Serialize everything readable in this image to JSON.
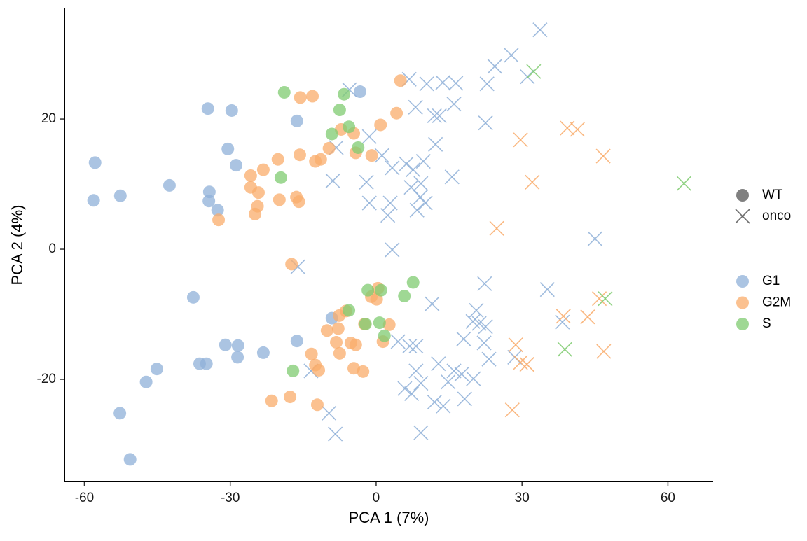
{
  "chart_data": {
    "type": "scatter",
    "x_label": "PCA 1 (7%)",
    "y_label": "PCA 2 (4%)",
    "xlim": [
      -64.1,
      69.3
    ],
    "ylim": [
      -35.7,
      37.0
    ],
    "xticks": [
      -60,
      -30,
      0,
      30,
      60
    ],
    "yticks": [
      -20,
      0,
      20
    ],
    "grid": false,
    "shape_legend": [
      {
        "name": "WT",
        "marker": "circle"
      },
      {
        "name": "onco",
        "marker": "cross"
      }
    ],
    "series": [
      {
        "name": "G1",
        "color": "#8fb0d8",
        "groups": [
          {
            "shape": "WT",
            "x": [
              -57.8,
              -58.1,
              -52.6,
              -42.5,
              -34.6,
              -29.7,
              -30.5,
              -28.8,
              -34.3,
              -34.4,
              -32.6,
              -16.3,
              -3.3,
              -37.6,
              -31.0,
              -28.4,
              -28.5,
              -36.3,
              -34.9,
              -23.2,
              -16.3,
              -45.1,
              -47.3,
              -52.7,
              -50.6,
              -9.1
            ],
            "values": [
              13.3,
              7.5,
              8.2,
              9.8,
              21.6,
              21.3,
              15.4,
              12.9,
              8.8,
              7.4,
              6.0,
              19.7,
              24.2,
              -7.4,
              -14.7,
              -14.8,
              -16.6,
              -17.6,
              -17.6,
              -15.9,
              -14.1,
              -18.4,
              -20.4,
              -25.2,
              -32.3,
              -10.6
            ]
          },
          {
            "shape": "onco",
            "x": [
              6.8,
              33.7,
              27.8,
              24.4,
              10.4,
              13.7,
              16.4,
              22.8,
              31.1,
              8.1,
              12.0,
              13.0,
              16.0,
              22.5,
              12.2,
              15.6,
              -1.4,
              -8.2,
              -5.5,
              1.2,
              3.3,
              6.2,
              7.6,
              9.7,
              7.2,
              9.2,
              9.1,
              10.1,
              8.4,
              2.9,
              2.4,
              -2.0,
              -1.4,
              -8.9,
              3.3,
              45.0,
              -16.1,
              11.5,
              22.3,
              35.2,
              38.3,
              20.6,
              19.9,
              21.2,
              22.5,
              22.2,
              23.2,
              18.0,
              4.5,
              6.9,
              8.2,
              8.2,
              12.8,
              16.0,
              14.8,
              17.6,
              20.0,
              9.2,
              5.9,
              7.3,
              12.0,
              13.8,
              18.2,
              28.5,
              -13.4,
              -9.7,
              -8.4,
              9.2
            ],
            "values": [
              26.1,
              33.7,
              29.8,
              28.1,
              25.4,
              25.6,
              25.5,
              25.4,
              26.5,
              21.8,
              20.5,
              20.5,
              22.3,
              19.4,
              16.1,
              11.1,
              17.3,
              15.6,
              24.5,
              14.4,
              12.5,
              13.1,
              12.2,
              13.5,
              9.5,
              10.1,
              8.0,
              7.1,
              6.0,
              7.1,
              5.2,
              10.3,
              7.1,
              10.5,
              -0.1,
              1.6,
              -2.7,
              -8.4,
              -5.3,
              -6.2,
              -11.2,
              -9.4,
              -11.1,
              -11.4,
              -11.9,
              -14.4,
              -16.9,
              -13.8,
              -14.2,
              -14.9,
              -14.9,
              -18.7,
              -17.6,
              -18.7,
              -20.4,
              -19.2,
              -19.9,
              -20.6,
              -21.4,
              -22.2,
              -23.5,
              -24.1,
              -23.0,
              -16.6,
              -18.7,
              -25.2,
              -28.4,
              -28.2
            ]
          }
        ]
      },
      {
        "name": "G2M",
        "color": "#f9ac6b",
        "groups": [
          {
            "shape": "WT",
            "x": [
              5.0,
              4.2,
              0.9,
              -4.6,
              -7.2,
              -9.7,
              -4.2,
              -0.9,
              -11.4,
              -12.5,
              -15.6,
              -13.1,
              -15.7,
              -20.2,
              -23.2,
              -25.8,
              -25.8,
              -24.2,
              -24.4,
              -24.9,
              -19.9,
              -16.4,
              -15.9,
              -32.4,
              -17.4,
              0.4,
              0.1,
              -1.0,
              -6.2,
              -7.6,
              -7.8,
              -10.1,
              -2.4,
              2.7,
              1.4,
              -5.2,
              -4.2,
              -8.2,
              -7.5,
              -13.3,
              -12.5,
              -11.8,
              -4.6,
              -2.7,
              -17.7,
              -21.5,
              -12.1
            ],
            "values": [
              25.9,
              20.9,
              19.1,
              17.8,
              18.4,
              15.5,
              14.8,
              14.4,
              13.8,
              13.5,
              23.3,
              23.5,
              14.5,
              13.8,
              12.2,
              11.3,
              9.5,
              8.7,
              6.6,
              5.4,
              7.6,
              8.0,
              7.3,
              4.5,
              -2.3,
              -6.0,
              -7.7,
              -7.3,
              -9.5,
              -10.2,
              -12.2,
              -12.5,
              -11.5,
              -11.6,
              -14.2,
              -14.4,
              -14.7,
              -14.3,
              -16.0,
              -16.1,
              -17.8,
              -18.6,
              -18.3,
              -18.8,
              -22.7,
              -23.3,
              -23.9
            ]
          },
          {
            "shape": "onco",
            "x": [
              29.7,
              39.3,
              41.4,
              46.7,
              32.1,
              24.8,
              38.5,
              43.5,
              45.9,
              28.7,
              29.7,
              31.0,
              46.8,
              28.0
            ],
            "values": [
              16.8,
              18.6,
              18.4,
              14.3,
              10.3,
              3.2,
              -10.3,
              -10.4,
              -7.6,
              -14.7,
              -17.4,
              -17.7,
              -15.7,
              -24.7
            ]
          }
        ]
      },
      {
        "name": "S",
        "color": "#7fcb70",
        "groups": [
          {
            "shape": "WT",
            "x": [
              -18.9,
              -6.6,
              -7.5,
              -9.1,
              -5.6,
              -3.7,
              -19.6,
              -1.7,
              1.0,
              7.6,
              5.8,
              -5.6,
              -2.2,
              0.7,
              1.7,
              -17.1
            ],
            "values": [
              24.1,
              23.8,
              21.4,
              17.7,
              18.8,
              15.6,
              11.0,
              -6.3,
              -6.3,
              -5.1,
              -7.2,
              -9.4,
              -11.5,
              -11.3,
              -13.3,
              -18.7
            ]
          },
          {
            "shape": "onco",
            "x": [
              32.4,
              63.3,
              47.1,
              38.8
            ],
            "values": [
              27.3,
              10.1,
              -7.6,
              -15.4
            ]
          }
        ]
      }
    ]
  }
}
